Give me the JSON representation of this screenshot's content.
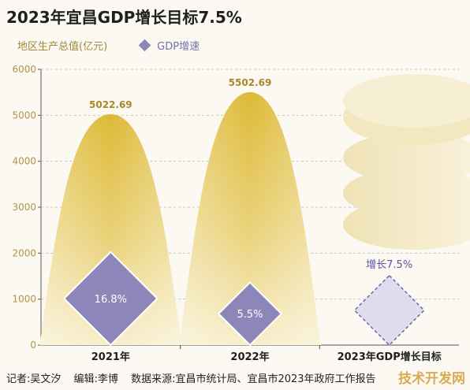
{
  "title": "2023年宜昌GDP增长目标7.5%",
  "legend": {
    "gdp_total": "地区生产总值(亿元)",
    "gdp_growth": "GDP增速"
  },
  "chart_data": {
    "type": "bar",
    "categories": [
      "2021年",
      "2022年",
      "2023年GDP增长目标"
    ],
    "series": [
      {
        "name": "地区生产总值(亿元)",
        "values": [
          5022.69,
          5502.69,
          null
        ]
      },
      {
        "name": "GDP增速",
        "values": [
          16.8,
          5.5,
          7.5
        ]
      }
    ],
    "value_labels": [
      "5022.69",
      "5502.69"
    ],
    "growth_labels": [
      "16.8%",
      "5.5%",
      "增长7.5%"
    ],
    "y_ticks": [
      "0",
      "1000",
      "2000",
      "3000",
      "4000",
      "5000",
      "6000"
    ],
    "ylim": [
      0,
      6000
    ],
    "grid": true,
    "colors": {
      "bar": "#e2c24a",
      "diamond": "#8c87b8",
      "target_diamond": "#dcd9ee",
      "target_text": "#5c56a0"
    }
  },
  "footer": {
    "reporter": "记者:吴文汐",
    "editor": "编辑:李博",
    "source": "数据来源:宜昌市统计局、宜昌市2023年政府工作报告"
  },
  "watermark": "技术开发网"
}
